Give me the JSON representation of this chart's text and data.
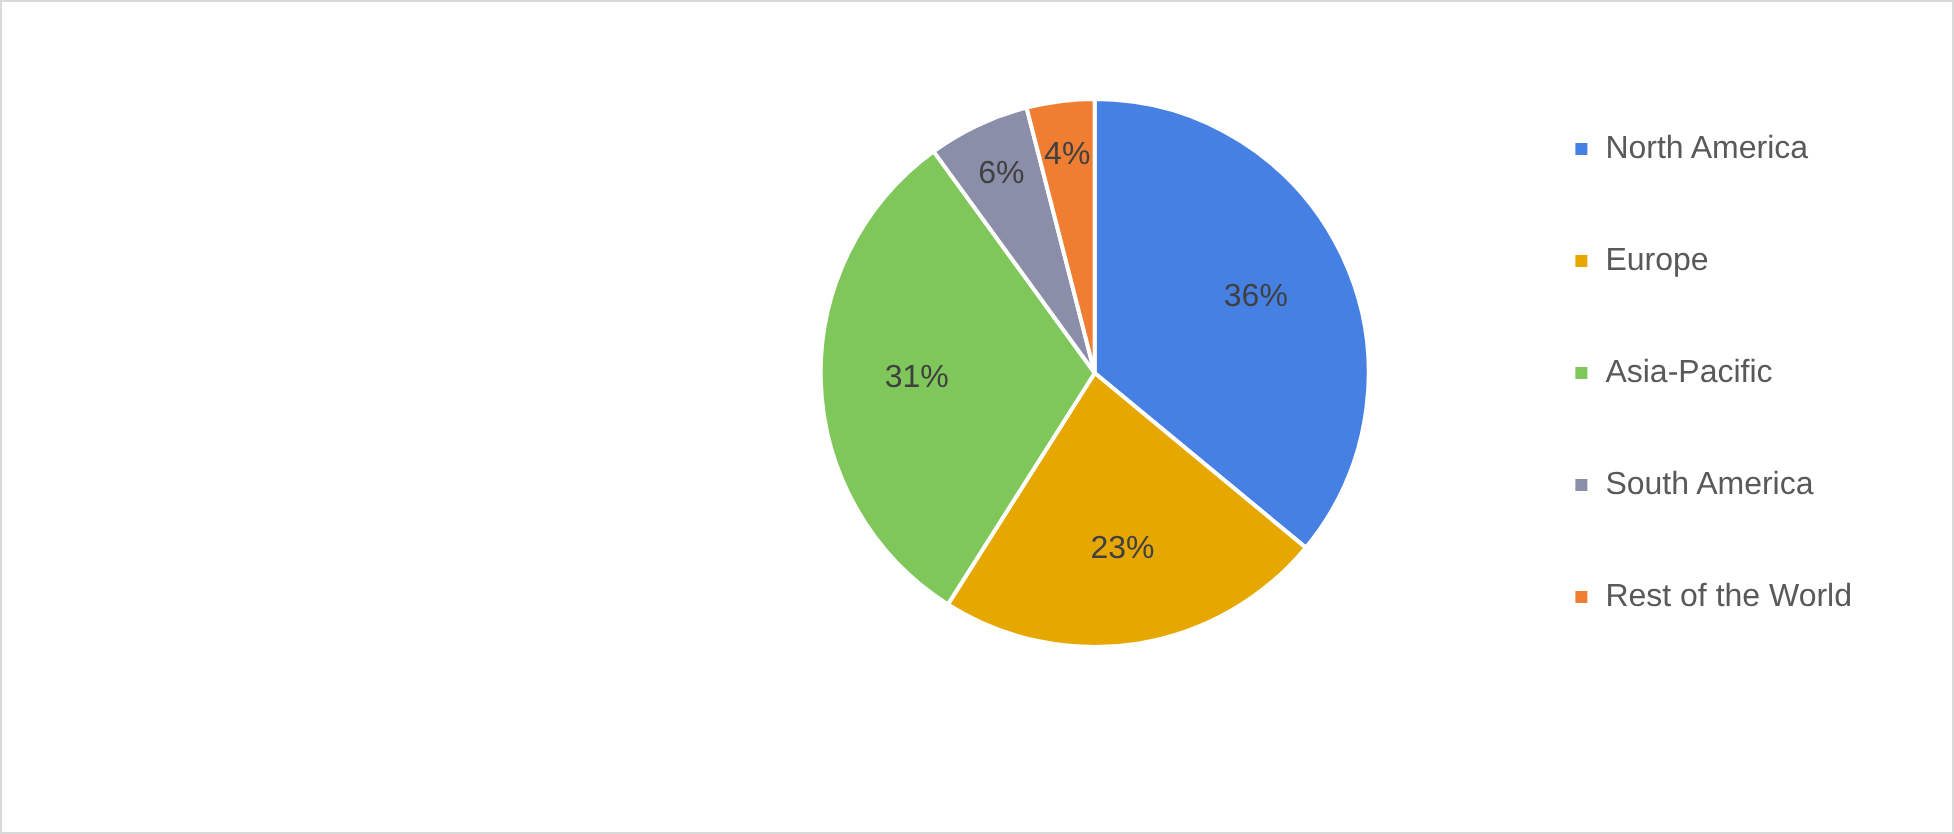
{
  "chart_data": {
    "type": "pie",
    "categories": [
      "North America",
      "Europe",
      "Asia-Pacific",
      "South America",
      "Rest of the World"
    ],
    "values": [
      36,
      23,
      31,
      6,
      4
    ],
    "colors": [
      "#4580e2",
      "#e6a800",
      "#7fc65b",
      "#8b8ea8",
      "#ef7e32"
    ],
    "value_labels": [
      "36%",
      "23%",
      "31%",
      "6%",
      "4%"
    ],
    "legend": "right"
  }
}
